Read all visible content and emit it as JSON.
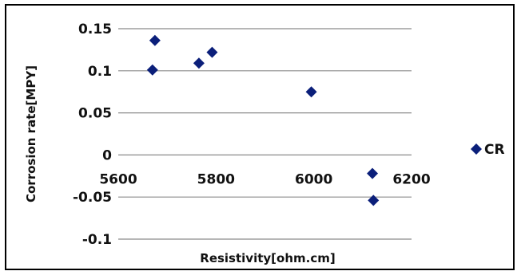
{
  "chart_data": {
    "type": "scatter",
    "title": "",
    "xlabel": "Resistivity[ohm.cm]",
    "ylabel": "Corrosion rate[MPY]",
    "xlim": [
      5600,
      6200
    ],
    "ylim": [
      -0.1,
      0.15
    ],
    "xticks": [
      5600,
      5800,
      6000,
      6200
    ],
    "yticks": [
      0.15,
      0.1,
      0.05,
      0,
      -0.05,
      -0.1
    ],
    "xtick_labels": [
      "5600",
      "5800",
      "6000",
      "6200"
    ],
    "ytick_labels": [
      "0.15",
      "0.1",
      "0.05",
      "0",
      "-0.05",
      "-0.1"
    ],
    "grid": "horizontal",
    "legend_position": "right",
    "series": [
      {
        "name": "CR",
        "color": "#0b1f7a",
        "marker": "diamond",
        "points": [
          {
            "x": 5675,
            "y": 0.136
          },
          {
            "x": 5670,
            "y": 0.101
          },
          {
            "x": 5765,
            "y": 0.109
          },
          {
            "x": 5792,
            "y": 0.122
          },
          {
            "x": 5995,
            "y": 0.075
          },
          {
            "x": 6120,
            "y": -0.022
          },
          {
            "x": 6122,
            "y": -0.054
          }
        ]
      }
    ]
  }
}
